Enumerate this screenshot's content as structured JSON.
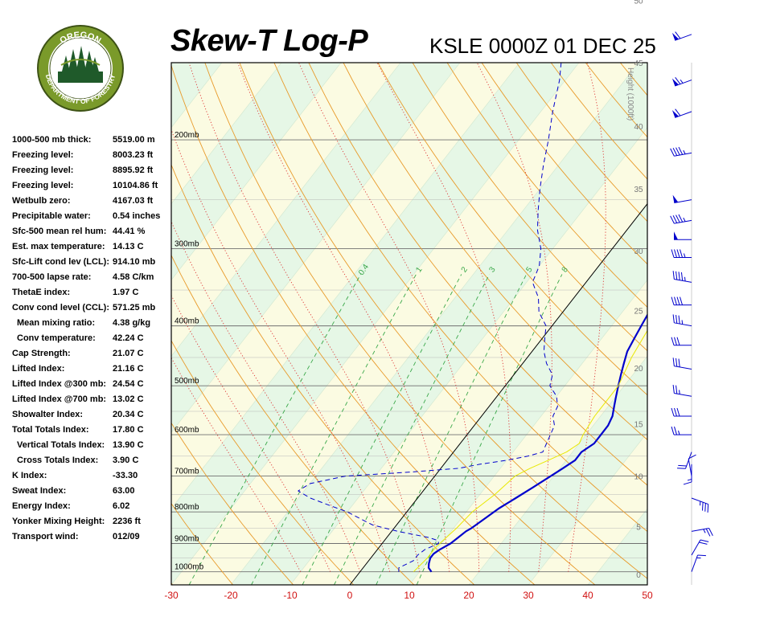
{
  "title": "Skew-T Log-P",
  "subtitle": "KSLE 0000Z 01 DEC 25",
  "logo": {
    "top_text": "OREGON",
    "bottom_text": "DEPARTMENT OF FORESTRY",
    "colors": {
      "ring": "#7a9a2a",
      "inner": "#ffffff",
      "trees": "#1f5a2a",
      "text": "#ffffff"
    }
  },
  "stats": [
    {
      "label": "1000-500 mb thick:",
      "value": "5519.00 m",
      "indent": false
    },
    {
      "label": "Freezing level:",
      "value": "8003.23 ft",
      "indent": false
    },
    {
      "label": "Freezing level:",
      "value": "8895.92 ft",
      "indent": false
    },
    {
      "label": "Freezing level:",
      "value": "10104.86 ft",
      "indent": false
    },
    {
      "label": "Wetbulb zero:",
      "value": "4167.03 ft",
      "indent": false
    },
    {
      "label": "Precipitable water:",
      "value": "0.54 inches",
      "indent": false
    },
    {
      "label": "Sfc-500 mean rel hum:",
      "value": "44.41 %",
      "indent": false
    },
    {
      "label": "Est. max temperature:",
      "value": "14.13 C",
      "indent": false
    },
    {
      "label": "Sfc-Lift cond lev (LCL):",
      "value": "914.10 mb",
      "indent": false
    },
    {
      "label": "700-500 lapse rate:",
      "value": "4.58 C/km",
      "indent": false
    },
    {
      "label": "ThetaE index:",
      "value": "1.97 C",
      "indent": false
    },
    {
      "label": "Conv cond level (CCL):",
      "value": "571.25 mb",
      "indent": false
    },
    {
      "label": "Mean mixing ratio:",
      "value": "4.38 g/kg",
      "indent": true
    },
    {
      "label": "Conv temperature:",
      "value": "42.24 C",
      "indent": true
    },
    {
      "label": "Cap Strength:",
      "value": "21.07 C",
      "indent": false
    },
    {
      "label": "Lifted Index:",
      "value": "21.16 C",
      "indent": false
    },
    {
      "label": "Lifted Index @300 mb:",
      "value": "24.54 C",
      "indent": false
    },
    {
      "label": "Lifted Index @700 mb:",
      "value": "13.02 C",
      "indent": false
    },
    {
      "label": "Showalter Index:",
      "value": "20.34 C",
      "indent": false
    },
    {
      "label": "Total Totals Index:",
      "value": "17.80 C",
      "indent": false
    },
    {
      "label": "Vertical Totals Index:",
      "value": "13.90 C",
      "indent": true
    },
    {
      "label": "Cross Totals Index:",
      "value": "3.90 C",
      "indent": true
    },
    {
      "label": "K Index:",
      "value": "-33.30",
      "indent": false
    },
    {
      "label": "Sweat Index:",
      "value": "63.00",
      "indent": false
    },
    {
      "label": "Energy Index:",
      "value": "6.02",
      "indent": false
    },
    {
      "label": "Yonker Mixing Height:",
      "value": "2236 ft",
      "indent": false
    },
    {
      "label": "Transport wind:",
      "value": "012/09",
      "indent": false
    }
  ],
  "chart_data": {
    "type": "line",
    "title": "Skew-T Log-P",
    "subtitle": "KSLE 0000Z 01 DEC 25",
    "xlabel": "",
    "ylabel": "",
    "x_ticks": [
      -30,
      -20,
      -10,
      0,
      10,
      20,
      30,
      40,
      50
    ],
    "xlim": [
      -30,
      50
    ],
    "y_scale": "log-pressure",
    "pressure_labels": [
      {
        "p": 1000,
        "text": "1000mb"
      },
      {
        "p": 900,
        "text": "900mb"
      },
      {
        "p": 800,
        "text": "800mb"
      },
      {
        "p": 700,
        "text": "700mb"
      },
      {
        "p": 600,
        "text": "600mb"
      },
      {
        "p": 500,
        "text": "500mb"
      },
      {
        "p": 400,
        "text": "400mb"
      },
      {
        "p": 300,
        "text": "300mb"
      },
      {
        "p": 200,
        "text": "200mb"
      }
    ],
    "ylim_mb": [
      1050,
      150
    ],
    "height_axis": {
      "label": "Height (1000ft)",
      "ticks": [
        {
          "value": 0,
          "p": 1010
        },
        {
          "value": 5,
          "p": 845
        },
        {
          "value": 10,
          "p": 700
        },
        {
          "value": 15,
          "p": 576
        },
        {
          "value": 20,
          "p": 468
        },
        {
          "value": 25,
          "p": 378
        },
        {
          "value": 30,
          "p": 302
        },
        {
          "value": 35,
          "p": 240
        },
        {
          "value": 40,
          "p": 190
        },
        {
          "value": 45,
          "p": 150
        },
        {
          "value": 50,
          "p": 119
        }
      ]
    },
    "mixing_ratio_labels": [
      "0.4",
      "1",
      "2",
      "3",
      "5",
      "8"
    ],
    "series": [
      {
        "role": "temperature",
        "color": "#0000cc",
        "style": "solid",
        "points": [
          [
            1000,
            12.0
          ],
          [
            985,
            11.0
          ],
          [
            970,
            10.5
          ],
          [
            950,
            10.0
          ],
          [
            935,
            10.0
          ],
          [
            920,
            10.5
          ],
          [
            900,
            11.5
          ],
          [
            880,
            12.0
          ],
          [
            860,
            12.5
          ],
          [
            850,
            13.0
          ],
          [
            820,
            14.0
          ],
          [
            790,
            15.0
          ],
          [
            760,
            16.5
          ],
          [
            730,
            18.0
          ],
          [
            700,
            19.5
          ],
          [
            680,
            20.5
          ],
          [
            660,
            21.5
          ],
          [
            640,
            21.5
          ],
          [
            620,
            22.5
          ],
          [
            600,
            22.5
          ],
          [
            580,
            22.5
          ],
          [
            560,
            22.0
          ],
          [
            540,
            21.0
          ],
          [
            520,
            20.0
          ],
          [
            500,
            19.0
          ],
          [
            480,
            18.0
          ],
          [
            460,
            17.0
          ],
          [
            440,
            16.0
          ],
          [
            420,
            15.5
          ],
          [
            400,
            15.0
          ],
          [
            380,
            14.5
          ],
          [
            360,
            14.0
          ],
          [
            340,
            12.5
          ],
          [
            320,
            11.0
          ],
          [
            300,
            9.5
          ],
          [
            280,
            8.0
          ],
          [
            260,
            6.5
          ],
          [
            240,
            5.0
          ],
          [
            220,
            3.5
          ],
          [
            200,
            1.5
          ],
          [
            180,
            -0.5
          ],
          [
            160,
            2.5
          ],
          [
            150,
            7.5
          ],
          [
            140,
            13.0
          ]
        ]
      },
      {
        "role": "dewpoint",
        "color": "#0000cc",
        "style": "dashed",
        "points": [
          [
            1000,
            6.5
          ],
          [
            985,
            6.0
          ],
          [
            960,
            7.5
          ],
          [
            940,
            7.5
          ],
          [
            920,
            8.0
          ],
          [
            900,
            9.5
          ],
          [
            890,
            9.0
          ],
          [
            880,
            7.0
          ],
          [
            860,
            1.0
          ],
          [
            840,
            -4.0
          ],
          [
            820,
            -7.0
          ],
          [
            800,
            -10.0
          ],
          [
            780,
            -14.0
          ],
          [
            760,
            -18.0
          ],
          [
            740,
            -21.0
          ],
          [
            720,
            -20.0
          ],
          [
            700,
            -15.0
          ],
          [
            690,
            -5.0
          ],
          [
            680,
            3.0
          ],
          [
            670,
            6.0
          ],
          [
            660,
            10.0
          ],
          [
            650,
            13.0
          ],
          [
            640,
            15.0
          ],
          [
            620,
            14.5
          ],
          [
            600,
            14.0
          ],
          [
            580,
            13.5
          ],
          [
            560,
            12.0
          ],
          [
            540,
            11.5
          ],
          [
            520,
            10.0
          ],
          [
            500,
            7.5
          ],
          [
            480,
            6.5
          ],
          [
            460,
            4.0
          ],
          [
            440,
            2.0
          ],
          [
            420,
            0.5
          ],
          [
            400,
            -1.0
          ],
          [
            380,
            -4.0
          ],
          [
            360,
            -6.0
          ],
          [
            340,
            -9.0
          ],
          [
            320,
            -10.0
          ],
          [
            300,
            -12.0
          ],
          [
            280,
            -15.0
          ],
          [
            260,
            -17.5
          ],
          [
            240,
            -20.0
          ],
          [
            220,
            -22.5
          ],
          [
            200,
            -25.0
          ],
          [
            180,
            -28.0
          ],
          [
            160,
            -31.0
          ],
          [
            150,
            -33.0
          ],
          [
            140,
            -34.0
          ]
        ]
      },
      {
        "role": "parcel",
        "color": "#e8e800",
        "style": "solid",
        "points": [
          [
            1000,
            9.0
          ],
          [
            950,
            9.5
          ],
          [
            914,
            9.5
          ],
          [
            880,
            10.0
          ],
          [
            850,
            10.5
          ],
          [
            800,
            11.0
          ],
          [
            750,
            12.5
          ],
          [
            700,
            13.5
          ],
          [
            680,
            15.0
          ],
          [
            660,
            17.0
          ],
          [
            640,
            19.0
          ],
          [
            620,
            20.0
          ],
          [
            600,
            19.5
          ],
          [
            560,
            19.0
          ],
          [
            500,
            19.0
          ],
          [
            450,
            17.5
          ],
          [
            400,
            16.5
          ],
          [
            360,
            15.5
          ],
          [
            330,
            14.5
          ],
          [
            320,
            13.5
          ]
        ]
      }
    ],
    "wind_profile": [
      {
        "p": 1000,
        "dir": 20,
        "spd": 15
      },
      {
        "p": 940,
        "dir": 30,
        "spd": 20
      },
      {
        "p": 860,
        "dir": 80,
        "spd": 25
      },
      {
        "p": 760,
        "dir": 110,
        "spd": 35
      },
      {
        "p": 700,
        "dir": 350,
        "spd": 10
      },
      {
        "p": 670,
        "dir": 180,
        "spd": 15
      },
      {
        "p": 640,
        "dir": 200,
        "spd": 20
      },
      {
        "p": 600,
        "dir": 270,
        "spd": 25
      },
      {
        "p": 560,
        "dir": 270,
        "spd": 30
      },
      {
        "p": 520,
        "dir": 280,
        "spd": 25
      },
      {
        "p": 470,
        "dir": 280,
        "spd": 30
      },
      {
        "p": 430,
        "dir": 270,
        "spd": 30
      },
      {
        "p": 400,
        "dir": 280,
        "spd": 35
      },
      {
        "p": 370,
        "dir": 270,
        "spd": 40
      },
      {
        "p": 340,
        "dir": 280,
        "spd": 45
      },
      {
        "p": 310,
        "dir": 270,
        "spd": 45
      },
      {
        "p": 290,
        "dir": 270,
        "spd": 50
      },
      {
        "p": 270,
        "dir": 260,
        "spd": 45
      },
      {
        "p": 250,
        "dir": 260,
        "spd": 50
      },
      {
        "p": 210,
        "dir": 260,
        "spd": 45
      },
      {
        "p": 180,
        "dir": 250,
        "spd": 60
      },
      {
        "p": 160,
        "dir": 250,
        "spd": 65
      },
      {
        "p": 135,
        "dir": 250,
        "spd": 60
      }
    ]
  }
}
